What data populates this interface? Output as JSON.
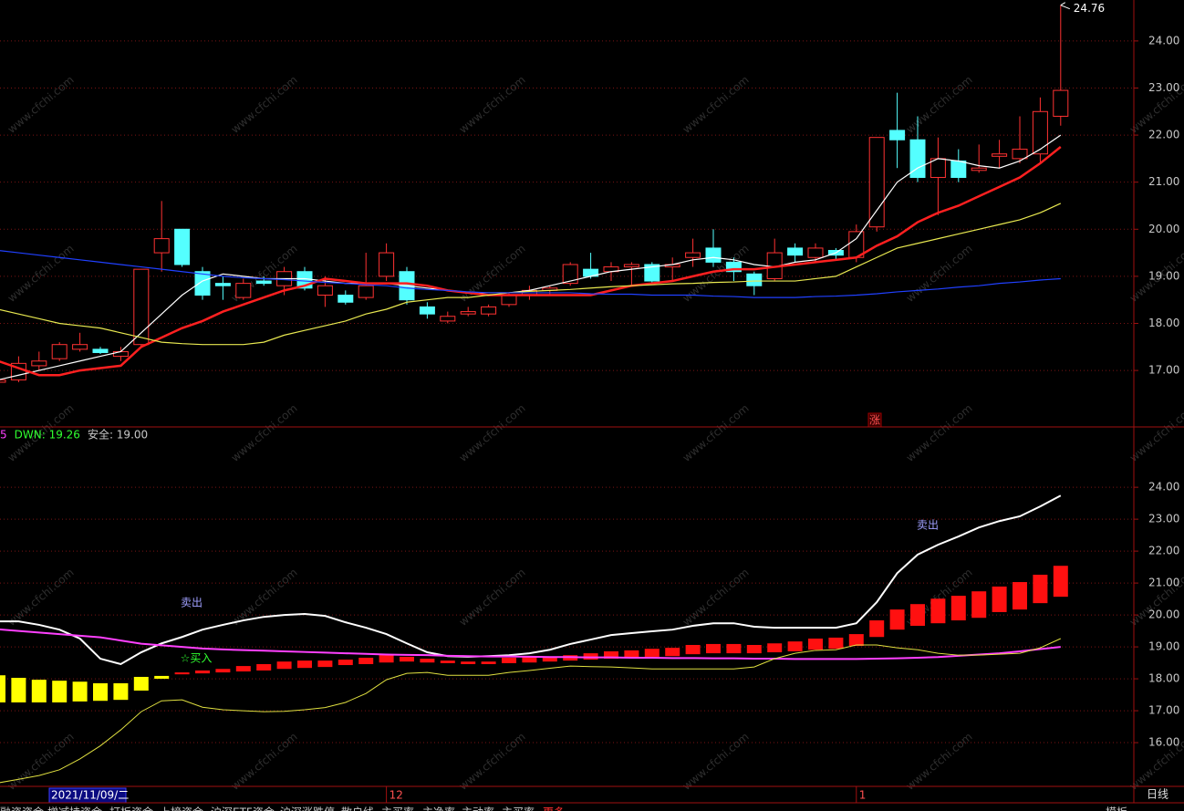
{
  "chart_data": [
    {
      "type": "candlestick",
      "open": [
        16.75,
        16.8,
        17.1,
        17.25,
        17.45,
        17.45,
        17.3,
        17.55,
        19.5,
        20.0,
        19.1,
        18.85,
        18.55,
        18.9,
        18.8,
        19.1,
        18.6,
        18.6,
        18.55,
        19.0,
        19.1,
        18.35,
        18.05,
        18.2,
        18.2,
        18.4,
        18.6,
        18.7,
        18.85,
        19.15,
        19.1,
        19.2,
        19.25,
        19.2,
        19.4,
        19.6,
        19.3,
        19.05,
        18.95,
        19.6,
        19.4,
        19.55,
        19.4,
        20.05,
        22.1,
        21.9,
        21.1,
        21.45,
        21.25,
        21.55,
        21.5,
        21.6,
        22.4
      ],
      "high": [
        16.85,
        17.3,
        17.4,
        17.6,
        17.8,
        17.5,
        17.5,
        19.15,
        20.6,
        20.0,
        19.2,
        19.0,
        18.95,
        19.0,
        19.2,
        19.2,
        19.0,
        18.7,
        19.5,
        19.7,
        19.2,
        18.45,
        18.25,
        18.35,
        18.4,
        18.65,
        18.8,
        18.8,
        19.3,
        19.5,
        19.3,
        19.3,
        19.3,
        19.4,
        19.8,
        20.0,
        19.4,
        19.1,
        19.8,
        19.7,
        19.7,
        19.6,
        20.1,
        21.95,
        22.9,
        22.4,
        21.95,
        21.7,
        21.8,
        21.9,
        22.4,
        22.8,
        24.76
      ],
      "low": [
        16.7,
        16.75,
        17.0,
        17.2,
        17.4,
        17.35,
        17.2,
        17.5,
        19.1,
        19.2,
        18.5,
        18.5,
        18.5,
        18.8,
        18.6,
        18.7,
        18.35,
        18.4,
        18.5,
        18.9,
        18.4,
        18.1,
        18.0,
        18.15,
        18.15,
        18.35,
        18.5,
        18.6,
        18.8,
        18.95,
        18.9,
        18.8,
        18.85,
        18.9,
        19.2,
        19.2,
        18.9,
        18.6,
        18.9,
        19.3,
        19.3,
        19.35,
        19.3,
        19.95,
        21.3,
        21.0,
        20.3,
        21.0,
        21.2,
        21.3,
        21.4,
        21.4,
        22.2
      ],
      "close": [
        16.8,
        17.15,
        17.2,
        17.55,
        17.55,
        17.38,
        17.4,
        19.15,
        19.8,
        19.25,
        18.6,
        18.8,
        18.85,
        18.85,
        19.1,
        18.75,
        18.8,
        18.45,
        18.8,
        19.5,
        18.5,
        18.2,
        18.15,
        18.25,
        18.35,
        18.6,
        18.7,
        18.75,
        19.25,
        19.0,
        19.2,
        19.25,
        18.9,
        19.25,
        19.5,
        19.3,
        19.1,
        18.8,
        19.5,
        19.45,
        19.6,
        19.45,
        19.95,
        21.95,
        21.9,
        21.1,
        21.5,
        21.1,
        21.3,
        21.6,
        21.7,
        22.5,
        22.95
      ],
      "up_color": "#ff3232",
      "down_color": "#54ffff",
      "series": [
        {
          "color": "#ffffff",
          "values": [
            16.8,
            16.9,
            17.0,
            17.1,
            17.2,
            17.3,
            17.4,
            17.8,
            18.2,
            18.6,
            18.9,
            19.05,
            19.0,
            18.95,
            18.95,
            18.95,
            18.9,
            18.85,
            18.85,
            18.85,
            18.8,
            18.75,
            18.7,
            18.65,
            18.65,
            18.65,
            18.7,
            18.8,
            18.9,
            19.0,
            19.1,
            19.15,
            19.2,
            19.25,
            19.35,
            19.4,
            19.35,
            19.25,
            19.2,
            19.3,
            19.35,
            19.5,
            19.8,
            20.4,
            21.0,
            21.3,
            21.5,
            21.45,
            21.35,
            21.3,
            21.45,
            21.7,
            22.0
          ]
        },
        {
          "color": "#ff2020",
          "values": [
            17.2,
            17.05,
            16.9,
            16.9,
            17.0,
            17.05,
            17.1,
            17.5,
            17.7,
            17.9,
            18.05,
            18.25,
            18.4,
            18.55,
            18.7,
            18.8,
            18.95,
            18.9,
            18.85,
            18.85,
            18.85,
            18.8,
            18.7,
            18.65,
            18.6,
            18.6,
            18.6,
            18.6,
            18.6,
            18.6,
            18.7,
            18.8,
            18.85,
            18.9,
            19.0,
            19.1,
            19.15,
            19.15,
            19.2,
            19.25,
            19.3,
            19.35,
            19.4,
            19.65,
            19.85,
            20.15,
            20.35,
            20.5,
            20.7,
            20.9,
            21.1,
            21.4,
            21.75
          ]
        },
        {
          "color": "#e8e850",
          "values": [
            18.3,
            18.2,
            18.1,
            18.0,
            17.95,
            17.9,
            17.8,
            17.7,
            17.6,
            17.57,
            17.55,
            17.55,
            17.55,
            17.6,
            17.75,
            17.85,
            17.95,
            18.05,
            18.2,
            18.3,
            18.45,
            18.5,
            18.55,
            18.55,
            18.6,
            18.65,
            18.68,
            18.7,
            18.72,
            18.75,
            18.78,
            18.8,
            18.82,
            18.84,
            18.85,
            18.87,
            18.88,
            18.9,
            18.9,
            18.9,
            18.95,
            19.0,
            19.2,
            19.4,
            19.6,
            19.7,
            19.8,
            19.9,
            20.0,
            20.1,
            20.2,
            20.35,
            20.55
          ]
        },
        {
          "color": "#2040ff",
          "values": [
            19.55,
            19.5,
            19.45,
            19.4,
            19.35,
            19.3,
            19.25,
            19.2,
            19.15,
            19.1,
            19.05,
            19.0,
            18.97,
            18.95,
            18.93,
            18.9,
            18.87,
            18.85,
            18.82,
            18.8,
            18.75,
            18.72,
            18.7,
            18.67,
            18.65,
            18.65,
            18.65,
            18.65,
            18.65,
            18.63,
            18.62,
            18.62,
            18.6,
            18.6,
            18.6,
            18.58,
            18.57,
            18.55,
            18.55,
            18.55,
            18.57,
            18.58,
            18.6,
            18.63,
            18.67,
            18.7,
            18.73,
            18.77,
            18.8,
            18.85,
            18.88,
            18.92,
            18.95
          ]
        }
      ],
      "tag": "涨",
      "ylim": [
        15.8,
        24.87
      ],
      "yticks": [
        {
          "value": 17,
          "label": "17.00"
        },
        {
          "value": 18,
          "label": "18.00"
        },
        {
          "value": 19,
          "label": "19.00"
        },
        {
          "value": 20,
          "label": "20.00"
        },
        {
          "value": 21,
          "label": "21.00"
        },
        {
          "value": 22,
          "label": "22.00"
        },
        {
          "value": 23,
          "label": "23.00"
        },
        {
          "value": 24,
          "label": "24.00"
        }
      ],
      "grid": true
    },
    {
      "type": "indicator",
      "categories": [
        null,
        null,
        null,
        null,
        null,
        null,
        null,
        null,
        null,
        null,
        null,
        null,
        null,
        null,
        null,
        null,
        null,
        null,
        null,
        "12",
        null,
        null,
        null,
        null,
        null,
        null,
        null,
        null,
        null,
        null,
        null,
        null,
        null,
        null,
        null,
        null,
        null,
        null,
        null,
        null,
        null,
        null,
        "1",
        null,
        null,
        null,
        null,
        null,
        null,
        null,
        null,
        null,
        null
      ],
      "cursor_label": "2021/11/09/二",
      "legend": [
        {
          "text": "5",
          "color": "#ff40ff"
        },
        {
          "text": "DWN: 19.26",
          "color": "#30ff30"
        },
        {
          "text": "安全: 19.00",
          "color": "#c8c8c8"
        }
      ],
      "annotations": [
        {
          "text": "卖出",
          "color": "#a0a0ff"
        },
        {
          "text": "卖出",
          "color": "#a0a0ff"
        },
        {
          "text": "☆买入",
          "color": "#30ff30"
        }
      ],
      "series": [
        {
          "color": "#ffffff",
          "values": [
            19.8,
            19.8,
            19.69,
            19.54,
            19.26,
            18.63,
            18.46,
            18.83,
            19.11,
            19.31,
            19.54,
            19.69,
            19.83,
            19.94,
            20.0,
            20.03,
            19.97,
            19.77,
            19.6,
            19.4,
            19.11,
            18.83,
            18.71,
            18.69,
            18.71,
            18.74,
            18.8,
            18.91,
            19.09,
            19.23,
            19.37,
            19.43,
            19.49,
            19.54,
            19.66,
            19.74,
            19.74,
            19.63,
            19.6,
            19.6,
            19.6,
            19.6,
            19.74,
            20.4,
            21.31,
            21.89,
            22.2,
            22.46,
            22.74,
            22.94,
            23.09,
            23.4,
            23.74
          ]
        },
        {
          "color": "#ff40ff",
          "values": [
            19.55,
            19.5,
            19.45,
            19.4,
            19.35,
            19.3,
            19.2,
            19.1,
            19.05,
            19.0,
            18.95,
            18.92,
            18.9,
            18.88,
            18.86,
            18.84,
            18.82,
            18.8,
            18.78,
            18.76,
            18.75,
            18.74,
            18.72,
            18.71,
            18.7,
            18.7,
            18.69,
            18.68,
            18.68,
            18.67,
            18.67,
            18.66,
            18.66,
            18.65,
            18.65,
            18.64,
            18.64,
            18.63,
            18.63,
            18.62,
            18.62,
            18.62,
            18.62,
            18.63,
            18.64,
            18.66,
            18.68,
            18.72,
            18.76,
            18.8,
            18.86,
            18.93,
            19.0
          ]
        },
        {
          "color": "#e0e040",
          "values": [
            14.74,
            14.85,
            14.97,
            15.15,
            15.49,
            15.9,
            16.4,
            16.97,
            17.31,
            17.34,
            17.11,
            17.03,
            17.0,
            16.97,
            16.98,
            17.03,
            17.1,
            17.26,
            17.54,
            17.97,
            18.17,
            18.2,
            18.11,
            18.11,
            18.11,
            18.2,
            18.26,
            18.33,
            18.4,
            18.38,
            18.37,
            18.34,
            18.31,
            18.31,
            18.31,
            18.31,
            18.31,
            18.37,
            18.63,
            18.8,
            18.89,
            18.91,
            19.06,
            19.06,
            18.97,
            18.91,
            18.8,
            18.74,
            18.74,
            18.77,
            18.8,
            18.97,
            19.26
          ]
        }
      ],
      "bars": [
        {
          "color": "#ffff00",
          "high": [
            18.11,
            18.03,
            17.97,
            17.94,
            17.91,
            17.86,
            17.86,
            18.06,
            18.09,
            null,
            null,
            null,
            null,
            null,
            null,
            null,
            null,
            null,
            null,
            null,
            null,
            null,
            null,
            null,
            null,
            null,
            null,
            null,
            null,
            null,
            null,
            null,
            null,
            null,
            null,
            null,
            null,
            null,
            null,
            null,
            null,
            null,
            null,
            null,
            null,
            null,
            null,
            null,
            null,
            null,
            null,
            null,
            null
          ],
          "low": [
            17.26,
            17.26,
            17.26,
            17.26,
            17.29,
            17.31,
            17.34,
            17.63,
            18.0,
            null,
            null,
            null,
            null,
            null,
            null,
            null,
            null,
            null,
            null,
            null,
            null,
            null,
            null,
            null,
            null,
            null,
            null,
            null,
            null,
            null,
            null,
            null,
            null,
            null,
            null,
            null,
            null,
            null,
            null,
            null,
            null,
            null,
            null,
            null,
            null,
            null,
            null,
            null,
            null,
            null,
            null,
            null,
            null
          ]
        },
        {
          "color": "#ff1010",
          "high": [
            null,
            null,
            null,
            null,
            null,
            null,
            null,
            null,
            null,
            18.2,
            18.26,
            18.31,
            18.4,
            18.46,
            18.54,
            18.57,
            18.57,
            18.6,
            18.66,
            18.77,
            18.69,
            18.63,
            18.57,
            18.54,
            18.54,
            18.66,
            18.69,
            18.69,
            18.74,
            18.8,
            18.86,
            18.89,
            18.94,
            18.97,
            19.06,
            19.09,
            19.09,
            19.06,
            19.11,
            19.17,
            19.26,
            19.29,
            19.4,
            19.83,
            20.17,
            20.34,
            20.51,
            20.6,
            20.74,
            20.89,
            21.03,
            21.26,
            21.54
          ],
          "low": [
            null,
            null,
            null,
            null,
            null,
            null,
            null,
            null,
            null,
            18.14,
            18.17,
            18.2,
            18.23,
            18.26,
            18.31,
            18.34,
            18.37,
            18.43,
            18.46,
            18.51,
            18.54,
            18.51,
            18.49,
            18.46,
            18.46,
            18.49,
            18.51,
            18.54,
            18.57,
            18.6,
            18.63,
            18.66,
            18.69,
            18.71,
            18.77,
            18.8,
            18.8,
            18.8,
            18.83,
            18.86,
            18.91,
            18.94,
            19.03,
            19.31,
            19.54,
            19.66,
            19.74,
            19.83,
            19.91,
            20.09,
            20.17,
            20.37,
            20.57
          ]
        }
      ],
      "ylim": [
        14.63,
        25.89
      ],
      "yticks": [
        {
          "value": 16,
          "label": "16.00"
        },
        {
          "value": 17,
          "label": "17.00"
        },
        {
          "value": 18,
          "label": "18.00"
        },
        {
          "value": 19,
          "label": "19.00"
        },
        {
          "value": 20,
          "label": "20.00"
        },
        {
          "value": 21,
          "label": "21.00"
        },
        {
          "value": 22,
          "label": "22.00"
        },
        {
          "value": 23,
          "label": "23.00"
        },
        {
          "value": 24,
          "label": "24.00"
        }
      ],
      "grid": true
    }
  ],
  "toolbar": {
    "tabs": [
      {
        "text": "融资资金",
        "color": "#c8c8c8"
      },
      {
        "text": "增减持资金",
        "color": "#c8c8c8"
      },
      {
        "text": "打板资金",
        "color": "#c8c8c8"
      },
      {
        "text": "上榜资金",
        "color": "#c8c8c8"
      },
      {
        "text": "沪深ETF资金",
        "color": "#c8c8c8"
      },
      {
        "text": "沪深涨跌停",
        "color": "#c8c8c8"
      },
      {
        "text": "散户线",
        "color": "#c8c8c8"
      },
      {
        "text": "主买率",
        "color": "#c8c8c8"
      },
      {
        "text": "主净率",
        "color": "#c8c8c8"
      },
      {
        "text": "主动率",
        "color": "#c8c8c8"
      },
      {
        "text": "主买率",
        "color": "#c8c8c8"
      },
      {
        "text": "更多",
        "color": "#ff3030"
      }
    ],
    "template": "模板",
    "period": "日线"
  },
  "watermark": "www.cfchi.com"
}
